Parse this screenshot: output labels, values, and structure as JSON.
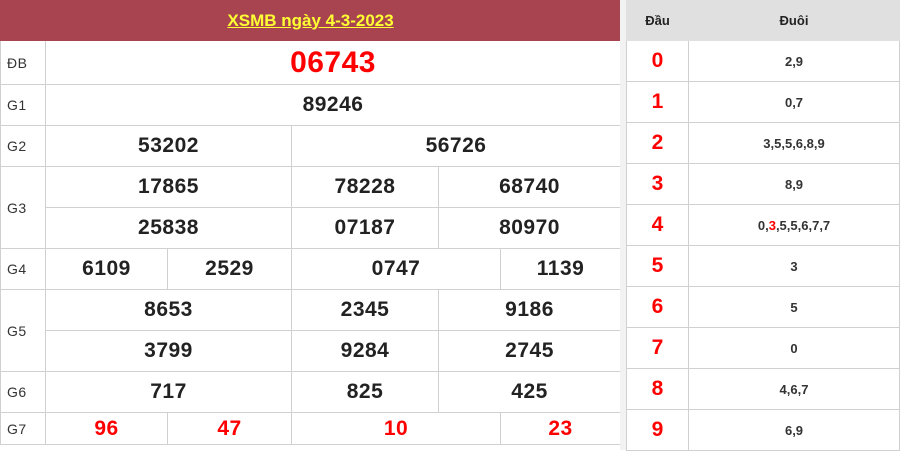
{
  "title": "XSMB ngày 4-3-2023",
  "prizes": [
    {
      "label": "ĐB",
      "values": [
        "06743"
      ],
      "highlight": true
    },
    {
      "label": "G1",
      "values": [
        "89246"
      ]
    },
    {
      "label": "G2",
      "values": [
        "53202",
        "56726"
      ]
    },
    {
      "label": "G3",
      "values": [
        "17865",
        "78228",
        "68740",
        "25838",
        "07187",
        "80970"
      ]
    },
    {
      "label": "G4",
      "values": [
        "6109",
        "2529",
        "0747",
        "1139"
      ]
    },
    {
      "label": "G5",
      "values": [
        "8653",
        "2345",
        "9186",
        "3799",
        "9284",
        "2745"
      ]
    },
    {
      "label": "G6",
      "values": [
        "717",
        "825",
        "425"
      ]
    },
    {
      "label": "G7",
      "values": [
        "96",
        "47",
        "10",
        "23"
      ],
      "highlight": true
    }
  ],
  "loto": {
    "head_label": "Đầu",
    "tail_label": "Đuôi",
    "rows": [
      {
        "head": "0",
        "tail": [
          "2",
          ",9"
        ]
      },
      {
        "head": "1",
        "tail": [
          "0",
          ",7"
        ]
      },
      {
        "head": "2",
        "tail": [
          "3",
          ",5",
          ",5",
          ",6",
          ",8",
          ",9"
        ]
      },
      {
        "head": "3",
        "tail": [
          "8",
          ",9"
        ]
      },
      {
        "head": "4",
        "tail": [
          "0",
          ",",
          "3",
          ",5",
          ",5",
          ",6",
          ",7",
          ",7"
        ],
        "red_index": 2
      },
      {
        "head": "5",
        "tail": [
          "3"
        ]
      },
      {
        "head": "6",
        "tail": [
          "5"
        ]
      },
      {
        "head": "7",
        "tail": [
          "0"
        ]
      },
      {
        "head": "8",
        "tail": [
          "4",
          ",6",
          ",7"
        ]
      },
      {
        "head": "9",
        "tail": [
          "6",
          ",9"
        ]
      }
    ]
  },
  "colors": {
    "header_bg": "#a8444f",
    "title": "#ffff33",
    "highlight": "#ff0000"
  }
}
